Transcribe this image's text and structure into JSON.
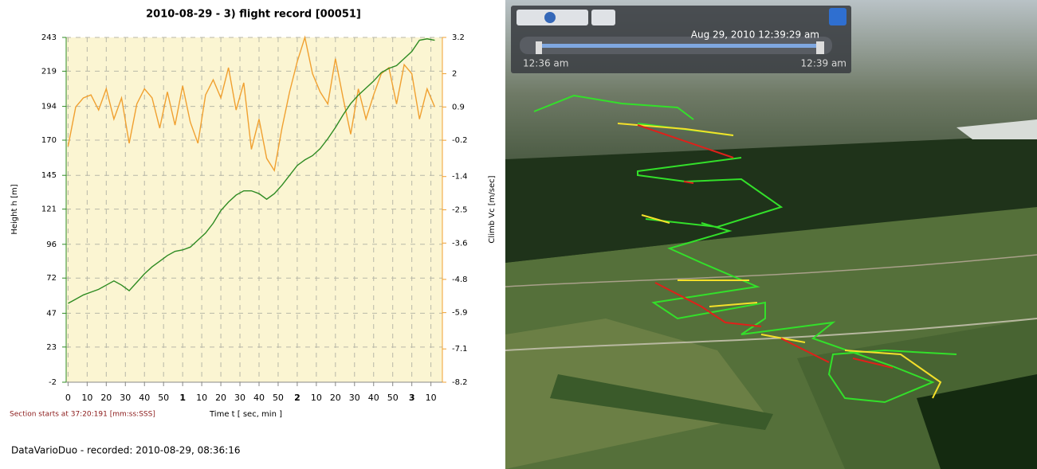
{
  "chart_data": {
    "type": "line",
    "title": "2010-08-29 - 3) flight record [00051]",
    "x_label": "Time   t   [ sec, min ]",
    "y_label": "Height   h   [m]",
    "y2_label": "Climb   Vc   [m/sec]",
    "note": "Section starts at  37:20:191 [mm:ss:SSS]",
    "x": [
      0,
      4,
      8,
      12,
      16,
      20,
      24,
      28,
      32,
      36,
      40,
      44,
      48,
      52,
      56,
      60,
      64,
      68,
      72,
      76,
      80,
      84,
      88,
      92,
      96,
      100,
      104,
      108,
      112,
      116,
      120,
      124,
      128,
      132,
      136,
      140,
      144,
      148,
      152,
      156,
      160,
      164,
      168,
      172,
      176,
      180,
      184,
      188,
      192
    ],
    "series": [
      {
        "name": "Height",
        "color": "#2e8b22",
        "values": [
          54,
          57,
          60,
          62,
          64,
          67,
          70,
          67,
          63,
          69,
          75,
          80,
          84,
          88,
          91,
          92,
          94,
          99,
          104,
          111,
          120,
          126,
          131,
          134,
          134,
          132,
          128,
          132,
          138,
          145,
          152,
          156,
          159,
          164,
          171,
          179,
          188,
          196,
          202,
          207,
          212,
          218,
          221,
          223,
          228,
          233,
          241,
          242,
          241
        ]
      },
      {
        "name": "Climb",
        "color": "#f0a030",
        "axis": "y2",
        "values": [
          -0.4,
          0.9,
          1.2,
          1.3,
          0.8,
          1.5,
          0.5,
          1.2,
          -0.3,
          1.0,
          1.5,
          1.2,
          0.2,
          1.4,
          0.3,
          1.6,
          0.4,
          -0.3,
          1.3,
          1.8,
          1.2,
          2.2,
          0.8,
          1.7,
          -0.5,
          0.5,
          -0.8,
          -1.2,
          0.2,
          1.4,
          2.4,
          3.2,
          2.0,
          1.4,
          1.0,
          2.5,
          1.2,
          0.0,
          1.5,
          0.5,
          1.3,
          2.0,
          2.2,
          1.0,
          2.3,
          2.0,
          0.5,
          1.5,
          0.9
        ]
      }
    ],
    "xlim": [
      -1,
      196
    ],
    "xticks": [
      0,
      10,
      20,
      30,
      40,
      50,
      {
        "value": 60,
        "label": "1"
      },
      {
        "value": 70,
        "label": "10"
      },
      {
        "value": 80,
        "label": "20"
      },
      {
        "value": 90,
        "label": "30"
      },
      {
        "value": 100,
        "label": "40"
      },
      {
        "value": 110,
        "label": "50"
      },
      {
        "value": 120,
        "label": "2"
      },
      {
        "value": 130,
        "label": "10"
      },
      {
        "value": 140,
        "label": "20"
      },
      {
        "value": 150,
        "label": "30"
      },
      {
        "value": 160,
        "label": "40"
      },
      {
        "value": 170,
        "label": "50"
      },
      {
        "value": 180,
        "label": "3"
      },
      {
        "value": 190,
        "label": "10"
      }
    ],
    "ylim": [
      -2,
      243
    ],
    "yticks": [
      243,
      219,
      194,
      170,
      145,
      121,
      96,
      72,
      47,
      23,
      -2
    ],
    "y2lim": [
      -8.2,
      3.2
    ],
    "y2ticks": [
      3.2,
      2.0,
      0.9,
      -0.2,
      -1.4,
      -2.5,
      -3.6,
      -4.8,
      -5.9,
      -7.1,
      -8.2
    ],
    "grid": true
  },
  "footer": "DataVarioDuo - recorded: 2010-08-29, 08:36:16",
  "earth": {
    "current_time": "Aug 29, 2010  12:39:29 am",
    "start_label": "12:36 am",
    "end_label": "12:39 am"
  }
}
